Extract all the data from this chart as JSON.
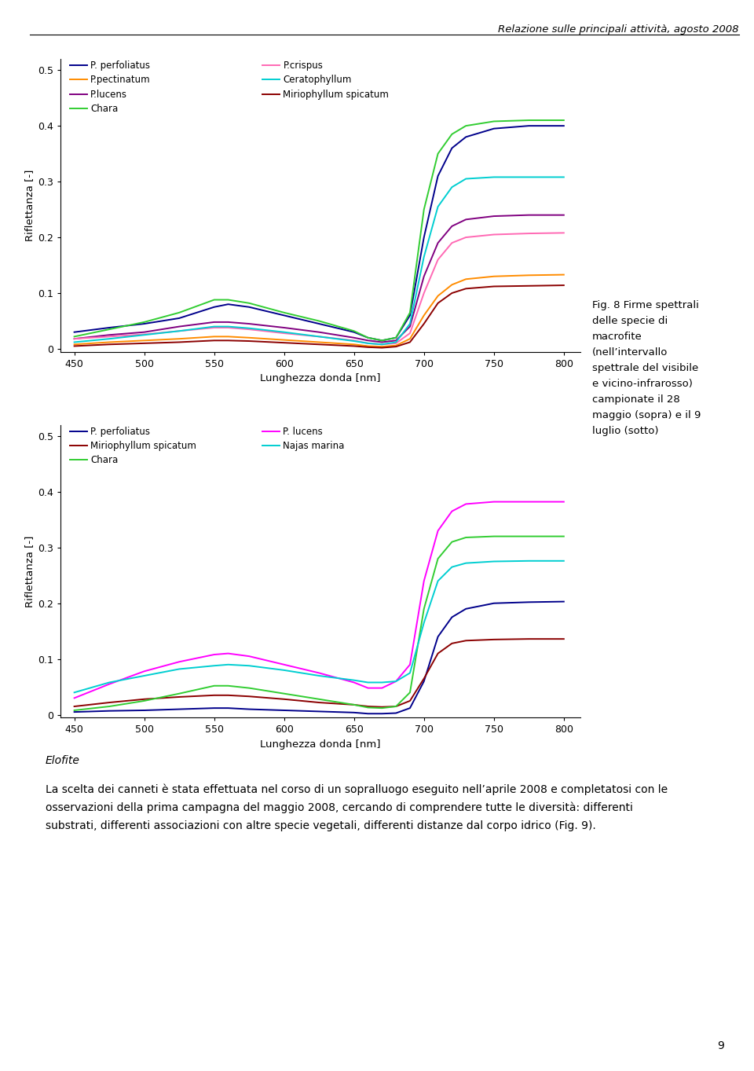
{
  "header": "Relazione sulle principali attività, agosto 2008",
  "xlabel": "Lunghezza donda [nm]",
  "ylabel": "Riflettanza [-]",
  "xticks": [
    450,
    500,
    550,
    600,
    650,
    700,
    750,
    800
  ],
  "yticks": [
    0,
    0.1,
    0.2,
    0.3,
    0.4,
    0.5
  ],
  "bottom_text_italic": "Elofite",
  "bottom_text": "La scelta dei canneti è stata effettuata nel corso di un sopralluogo eseguito nell’aprile 2008 e completatosi con le\nosservazioni della prima campagna del maggio 2008, cercando di comprendere tutte le diversità: differenti\nsubstrati, differenti associazioni con altre specie vegetali, differenti distanze dal corpo idrico (Fig. 9).",
  "page_number": "9",
  "fig_caption": "Fig. 8 Firme spettrali\ndelle specie di\nmacrofite\n(nell’intervallo\nspettrale del visibile\ne vicino-infrarosso)\ncampionate il 28\nmaggio (sopra) e il 9\nluglio (sotto)",
  "plot1": {
    "series": [
      {
        "label": "P. perfoliatus",
        "color": "#00008B",
        "x": [
          450,
          475,
          500,
          525,
          550,
          560,
          575,
          600,
          625,
          650,
          660,
          670,
          680,
          690,
          700,
          710,
          720,
          730,
          750,
          775,
          800
        ],
        "y": [
          0.03,
          0.038,
          0.045,
          0.055,
          0.075,
          0.08,
          0.075,
          0.06,
          0.045,
          0.03,
          0.02,
          0.015,
          0.02,
          0.06,
          0.2,
          0.31,
          0.36,
          0.38,
          0.395,
          0.4,
          0.4
        ]
      },
      {
        "label": "P.pectinatum",
        "color": "#FF8C00",
        "x": [
          450,
          475,
          500,
          525,
          550,
          560,
          575,
          600,
          625,
          650,
          660,
          670,
          680,
          690,
          700,
          710,
          720,
          730,
          750,
          775,
          800
        ],
        "y": [
          0.008,
          0.012,
          0.015,
          0.018,
          0.022,
          0.022,
          0.02,
          0.016,
          0.012,
          0.008,
          0.005,
          0.004,
          0.006,
          0.018,
          0.06,
          0.095,
          0.115,
          0.125,
          0.13,
          0.132,
          0.133
        ]
      },
      {
        "label": "P.lucens",
        "color": "#800080",
        "x": [
          450,
          475,
          500,
          525,
          550,
          560,
          575,
          600,
          625,
          650,
          660,
          670,
          680,
          690,
          700,
          710,
          720,
          730,
          750,
          775,
          800
        ],
        "y": [
          0.018,
          0.025,
          0.03,
          0.04,
          0.048,
          0.048,
          0.045,
          0.038,
          0.03,
          0.02,
          0.015,
          0.012,
          0.015,
          0.04,
          0.13,
          0.19,
          0.22,
          0.232,
          0.238,
          0.24,
          0.24
        ]
      },
      {
        "label": "Chara",
        "color": "#32CD32",
        "x": [
          450,
          475,
          500,
          525,
          550,
          560,
          575,
          600,
          625,
          650,
          660,
          670,
          680,
          690,
          700,
          710,
          720,
          730,
          750,
          775,
          800
        ],
        "y": [
          0.022,
          0.035,
          0.048,
          0.065,
          0.088,
          0.088,
          0.082,
          0.065,
          0.05,
          0.032,
          0.02,
          0.015,
          0.02,
          0.065,
          0.25,
          0.35,
          0.385,
          0.4,
          0.408,
          0.41,
          0.41
        ]
      },
      {
        "label": "P.crispus",
        "color": "#FF69B4",
        "x": [
          450,
          475,
          500,
          525,
          550,
          560,
          575,
          600,
          625,
          650,
          660,
          670,
          680,
          690,
          700,
          710,
          720,
          730,
          750,
          775,
          800
        ],
        "y": [
          0.018,
          0.022,
          0.026,
          0.032,
          0.038,
          0.038,
          0.035,
          0.028,
          0.022,
          0.015,
          0.01,
          0.008,
          0.01,
          0.028,
          0.1,
          0.16,
          0.19,
          0.2,
          0.205,
          0.207,
          0.208
        ]
      },
      {
        "label": "Ceratophyllum",
        "color": "#00CED1",
        "x": [
          450,
          475,
          500,
          525,
          550,
          560,
          575,
          600,
          625,
          650,
          660,
          670,
          680,
          690,
          700,
          710,
          720,
          730,
          750,
          775,
          800
        ],
        "y": [
          0.012,
          0.018,
          0.025,
          0.032,
          0.04,
          0.04,
          0.037,
          0.03,
          0.022,
          0.014,
          0.01,
          0.008,
          0.012,
          0.045,
          0.165,
          0.255,
          0.29,
          0.305,
          0.308,
          0.308,
          0.308
        ]
      },
      {
        "label": "Miriophyllum spicatum",
        "color": "#8B0000",
        "x": [
          450,
          475,
          500,
          525,
          550,
          560,
          575,
          600,
          625,
          650,
          660,
          670,
          680,
          690,
          700,
          710,
          720,
          730,
          750,
          775,
          800
        ],
        "y": [
          0.005,
          0.008,
          0.01,
          0.012,
          0.015,
          0.015,
          0.014,
          0.011,
          0.008,
          0.005,
          0.003,
          0.002,
          0.004,
          0.012,
          0.045,
          0.082,
          0.1,
          0.108,
          0.112,
          0.113,
          0.114
        ]
      }
    ],
    "legend_col1": [
      "P. perfoliatus",
      "P.pectinatum",
      "P.lucens",
      "Chara"
    ],
    "legend_col2": [
      "P.crispus",
      "Ceratophyllum",
      "Miriophyllum spicatum"
    ]
  },
  "plot2": {
    "series": [
      {
        "label": "P. perfoliatus",
        "color": "#00008B",
        "x": [
          450,
          475,
          500,
          525,
          550,
          560,
          575,
          600,
          625,
          650,
          660,
          670,
          680,
          690,
          700,
          710,
          720,
          730,
          750,
          775,
          800
        ],
        "y": [
          0.005,
          0.007,
          0.008,
          0.01,
          0.012,
          0.012,
          0.01,
          0.008,
          0.006,
          0.004,
          0.002,
          0.002,
          0.003,
          0.012,
          0.06,
          0.14,
          0.175,
          0.19,
          0.2,
          0.202,
          0.203
        ]
      },
      {
        "label": "Miriophyllum spicatum",
        "color": "#8B0000",
        "x": [
          450,
          475,
          500,
          525,
          550,
          560,
          575,
          600,
          625,
          650,
          660,
          670,
          680,
          690,
          700,
          710,
          720,
          730,
          750,
          775,
          800
        ],
        "y": [
          0.015,
          0.022,
          0.028,
          0.032,
          0.035,
          0.035,
          0.033,
          0.028,
          0.022,
          0.018,
          0.015,
          0.014,
          0.015,
          0.025,
          0.065,
          0.11,
          0.128,
          0.133,
          0.135,
          0.136,
          0.136
        ]
      },
      {
        "label": "Chara",
        "color": "#32CD32",
        "x": [
          450,
          475,
          500,
          525,
          550,
          560,
          575,
          600,
          625,
          650,
          660,
          670,
          680,
          690,
          700,
          710,
          720,
          730,
          750,
          775,
          800
        ],
        "y": [
          0.008,
          0.015,
          0.025,
          0.038,
          0.052,
          0.052,
          0.048,
          0.038,
          0.028,
          0.018,
          0.013,
          0.012,
          0.015,
          0.04,
          0.19,
          0.28,
          0.31,
          0.318,
          0.32,
          0.32,
          0.32
        ]
      },
      {
        "label": "P. lucens",
        "color": "#FF00FF",
        "x": [
          450,
          475,
          500,
          525,
          550,
          560,
          575,
          600,
          625,
          650,
          660,
          670,
          680,
          690,
          700,
          710,
          720,
          730,
          750,
          775,
          800
        ],
        "y": [
          0.03,
          0.055,
          0.078,
          0.095,
          0.108,
          0.11,
          0.105,
          0.09,
          0.075,
          0.058,
          0.048,
          0.048,
          0.06,
          0.09,
          0.24,
          0.33,
          0.365,
          0.378,
          0.382,
          0.382,
          0.382
        ]
      },
      {
        "label": "Najas marina",
        "color": "#00CED1",
        "x": [
          450,
          475,
          500,
          525,
          550,
          560,
          575,
          600,
          625,
          650,
          660,
          670,
          680,
          690,
          700,
          710,
          720,
          730,
          750,
          775,
          800
        ],
        "y": [
          0.04,
          0.058,
          0.07,
          0.082,
          0.088,
          0.09,
          0.088,
          0.08,
          0.07,
          0.062,
          0.058,
          0.058,
          0.06,
          0.075,
          0.165,
          0.24,
          0.265,
          0.272,
          0.275,
          0.276,
          0.276
        ]
      }
    ],
    "legend_col1": [
      "P. perfoliatus",
      "Miriophyllum spicatum",
      "Chara"
    ],
    "legend_col2": [
      "P. lucens",
      "Najas marina"
    ]
  }
}
